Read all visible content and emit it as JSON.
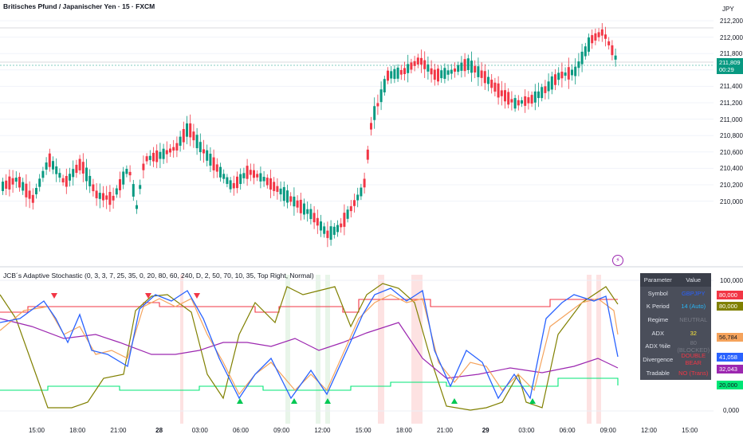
{
  "chart": {
    "title": "Britisches Pfund / Japanischer Yen · 15 · FXCM",
    "currency": "JPY",
    "price_axis": [
      "212,200",
      "212,000",
      "211,800",
      "211,600",
      "211,400",
      "211,200",
      "211,000",
      "210,800",
      "210,600",
      "210,400",
      "210,200",
      "210,000"
    ],
    "last_price": "211,809",
    "countdown": "00:29"
  },
  "indicator": {
    "title": "JCB´s Adaptive Stochastic (0, 3, 3, 7, 25, 35, 0, 20, 80, 60, 240, D, 2, 50, 70, 10, 35, Top Right, Normal)",
    "axis": [
      "100,000",
      "0,000"
    ],
    "tags": {
      "red_80": "80,000",
      "yellow_80": "80,000",
      "orange": "56,784",
      "blue": "41,058",
      "purple": "32,043",
      "green": "20,000"
    }
  },
  "time_axis": [
    {
      "label": "15:00",
      "bold": false
    },
    {
      "label": "18:00",
      "bold": false
    },
    {
      "label": "21:00",
      "bold": false
    },
    {
      "label": "28",
      "bold": true
    },
    {
      "label": "03:00",
      "bold": false
    },
    {
      "label": "06:00",
      "bold": false
    },
    {
      "label": "09:00",
      "bold": false
    },
    {
      "label": "12:00",
      "bold": false
    },
    {
      "label": "15:00",
      "bold": false
    },
    {
      "label": "18:00",
      "bold": false
    },
    {
      "label": "21:00",
      "bold": false
    },
    {
      "label": "29",
      "bold": true
    },
    {
      "label": "03:00",
      "bold": false
    },
    {
      "label": "06:00",
      "bold": false
    },
    {
      "label": "09:00",
      "bold": false
    },
    {
      "label": "12:00",
      "bold": false
    },
    {
      "label": "15:00",
      "bold": false
    }
  ],
  "table": {
    "header": [
      "Parameter",
      "Value"
    ],
    "rows": [
      {
        "param": "Symbol",
        "value": "GBPJPY",
        "color": "#2962ff"
      },
      {
        "param": "K Period",
        "value": "14 (Auto)",
        "color": "#29b6f6"
      },
      {
        "param": "Regime",
        "value": "NEUTRAL",
        "color": "#787b86"
      },
      {
        "param": "ADX",
        "value": "32",
        "color": "#ffeb3b"
      },
      {
        "param": "ADX %ile",
        "value": "80 (BLOCKED)",
        "color": "#787b86"
      },
      {
        "param": "Divergence",
        "value": "DOUBLE BEAR",
        "color": "#f23645"
      },
      {
        "param": "Tradable",
        "value": "NO (Trans)",
        "color": "#f23645"
      }
    ]
  },
  "colors": {
    "up": "#089981",
    "down": "#f23645",
    "stoch_k": "#2962ff",
    "stoch_d": "#f5a35c",
    "adx": "#808000",
    "rsi": "#9c27b0",
    "upper": "#f23645",
    "lower": "#00e676"
  }
}
